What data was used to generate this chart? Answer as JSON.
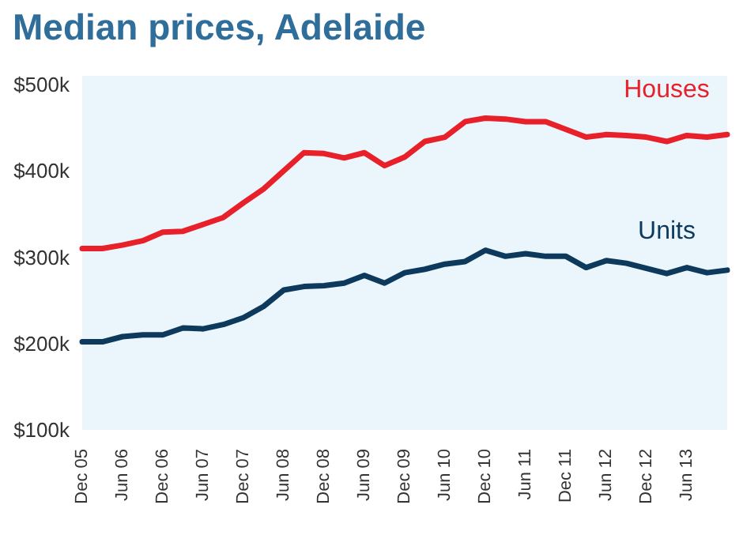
{
  "chart_data": {
    "type": "line",
    "title": "Median prices, Adelaide",
    "categories": [
      "Dec 05",
      null,
      "Jun 06",
      null,
      "Dec 06",
      null,
      "Jun 07",
      null,
      "Dec 07",
      null,
      "Jun 08",
      null,
      "Dec 08",
      null,
      "Jun 09",
      null,
      "Dec 09",
      null,
      "Jun 10",
      null,
      "Dec 10",
      null,
      "Jun 11",
      null,
      "Dec 11",
      null,
      "Jun 12",
      null,
      "Dec 12",
      null,
      "Jun 13",
      null,
      null
    ],
    "series": [
      {
        "name": "Houses",
        "color": "#e8202a",
        "values": [
          310,
          310,
          314,
          319,
          329,
          330,
          338,
          346,
          363,
          379,
          400,
          421,
          420,
          415,
          421,
          406,
          416,
          434,
          439,
          457,
          461,
          460,
          457,
          457,
          448,
          439,
          442,
          441,
          439,
          434,
          441,
          439,
          442
        ]
      },
      {
        "name": "Units",
        "color": "#0d3a5c",
        "values": [
          202,
          202,
          208,
          210,
          210,
          218,
          217,
          222,
          230,
          243,
          262,
          266,
          267,
          270,
          279,
          270,
          282,
          286,
          292,
          295,
          308,
          301,
          304,
          301,
          301,
          288,
          296,
          293,
          287,
          281,
          288,
          282,
          285
        ]
      }
    ],
    "ylim": [
      100,
      510
    ],
    "yticks": [
      {
        "value": 100,
        "label": "$100k"
      },
      {
        "value": 200,
        "label": "$200k"
      },
      {
        "value": 300,
        "label": "$300k"
      },
      {
        "value": 400,
        "label": "$400k"
      },
      {
        "value": 500,
        "label": "$500k"
      }
    ],
    "grid": false,
    "marker": "none",
    "line_style": "solid"
  }
}
